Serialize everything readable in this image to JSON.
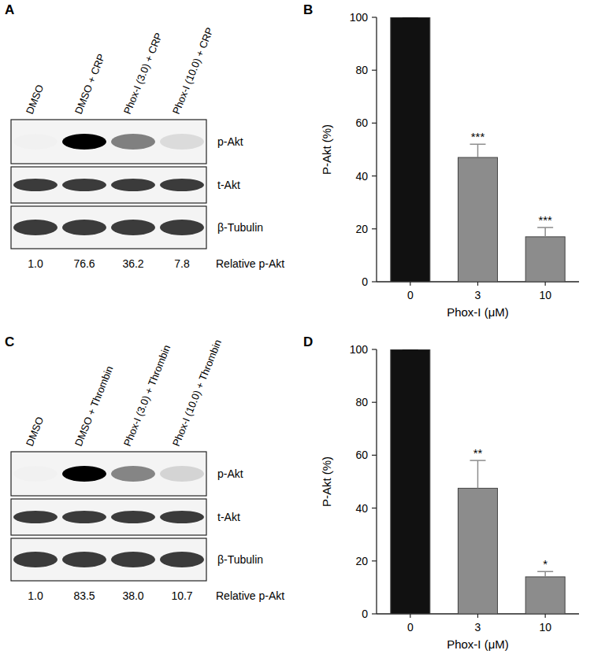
{
  "chart_data": [
    {
      "type": "bar",
      "panel": "B",
      "categories": [
        "0",
        "3",
        "10"
      ],
      "values": [
        100,
        47,
        17
      ],
      "errors": [
        0,
        5,
        3.5
      ],
      "colors": [
        "#111111",
        "#8c8c8c",
        "#8c8c8c"
      ],
      "significance": [
        null,
        "***",
        "***"
      ],
      "ylim": [
        0,
        100
      ],
      "yticks": [
        0,
        20,
        40,
        60,
        80,
        100
      ],
      "y_label": "P-Akt (%)",
      "x_label": "Phox-I (μM)"
    },
    {
      "type": "bar",
      "panel": "D",
      "categories": [
        "0",
        "3",
        "10"
      ],
      "values": [
        100,
        47.5,
        14
      ],
      "errors": [
        0,
        10.5,
        2
      ],
      "colors": [
        "#111111",
        "#8c8c8c",
        "#8c8c8c"
      ],
      "significance": [
        null,
        "**",
        "*"
      ],
      "ylim": [
        0,
        100
      ],
      "yticks": [
        0,
        20,
        40,
        60,
        80,
        100
      ],
      "y_label": "P-Akt (%)",
      "x_label": "Phox-I (μM)"
    }
  ],
  "blots": [
    {
      "panel": "A",
      "lanes": [
        "DMSO",
        "DMSO + CRP",
        "Phox-I (3.0) + CRP",
        "Phox-I (10.0) + CRP"
      ],
      "rows": [
        "p-Akt",
        "t-Akt",
        "β-Tubulin"
      ],
      "relative_values": [
        1.0,
        76.6,
        36.2,
        7.8
      ],
      "relative_value_labels": [
        "1.0",
        "76.6",
        "36.2",
        "7.8"
      ],
      "relative_label": "Relative p-Akt"
    },
    {
      "panel": "C",
      "lanes": [
        "DMSO",
        "DMSO + Thrombin",
        "Phox-I (3.0) + Thrombin",
        "Phox-I (10.0) + Thrombin"
      ],
      "rows": [
        "p-Akt",
        "t-Akt",
        "β-Tubulin"
      ],
      "relative_values": [
        1.0,
        83.5,
        38.0,
        10.7
      ],
      "relative_value_labels": [
        "1.0",
        "83.5",
        "38.0",
        "10.7"
      ],
      "relative_label": "Relative p-Akt"
    }
  ]
}
